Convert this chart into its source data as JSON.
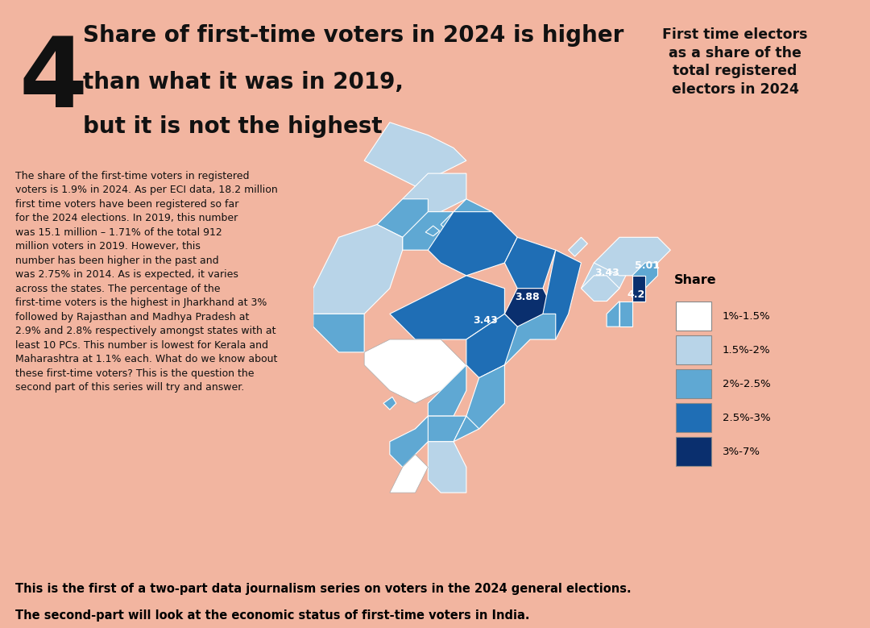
{
  "bg_color_salmon": "#f2b5a0",
  "bg_color_green": "#c9db78",
  "bg_color_footer": "#e0e0e0",
  "number_label": "4",
  "headline_line1": "Share of first-time voters in 2024 is higher",
  "headline_line2": "than what it was in 2019,",
  "headline_line3": "but it is not the highest",
  "body_text": "The share of the first-time voters in registered\nvoters is 1.9% in 2024. As per ECI data, 18.2 million\nfirst time voters have been registered so far\nfor the 2024 elections. In 2019, this number\nwas 15.1 million – 1.71% of the total 912\nmillion voters in 2019. However, this\nnumber has been higher in the past and\nwas 2.75% in 2014. As is expected, it varies\nacross the states. The percentage of the\nfirst-time voters is the highest in Jharkhand at 3%\nfollowed by Rajasthan and Madhya Pradesh at\n2.9% and 2.8% respectively amongst states with at\nleast 10 PCs. This number is lowest for Kerala and\nMaharashtra at 1.1% each. What do we know about\nthese first-time voters? This is the question the\nsecond part of this series will try and answer.",
  "map_title": "First time electors\nas a share of the\ntotal registered\nelectors in 2024",
  "legend_title": "Share",
  "legend_items": [
    {
      "label": "1%-1.5%",
      "color": "#ffffff"
    },
    {
      "label": "1.5%-2%",
      "color": "#b8d4e8"
    },
    {
      "label": "2%-2.5%",
      "color": "#5fa8d3"
    },
    {
      "label": "2.5%-3%",
      "color": "#1f6eb5"
    },
    {
      "label": "3%-7%",
      "color": "#0a2f6e"
    }
  ],
  "state_colors": {
    "Jammu & Kashmir": "#b8d4e8",
    "Ladakh": "#b8d4e8",
    "Himachal Pradesh": "#b8d4e8",
    "Uttarakhand": "#5fa8d3",
    "Punjab": "#5fa8d3",
    "Haryana": "#5fa8d3",
    "Delhi": "#5fa8d3",
    "Uttar Pradesh": "#1f6eb5",
    "Rajasthan": "#1f6eb5",
    "Bihar": "#1f6eb5",
    "Jharkhand": "#0a2f6e",
    "West Bengal": "#1f6eb5",
    "Sikkim": "#b8d4e8",
    "Assam": "#b8d4e8",
    "Arunachal Pradesh": "#b8d4e8",
    "Nagaland": "#5fa8d3",
    "Manipur": "#0a2f6e",
    "Mizoram": "#5fa8d3",
    "Tripura": "#5fa8d3",
    "Meghalaya": "#b8d4e8",
    "Madhya Pradesh": "#1f6eb5",
    "Chhattisgarh": "#1f6eb5",
    "Gujarat": "#5fa8d3",
    "Maharashtra": "#ffffff",
    "Goa": "#5fa8d3",
    "Odisha": "#5fa8d3",
    "Andhra Pradesh": "#5fa8d3",
    "Telangana": "#5fa8d3",
    "Karnataka": "#5fa8d3",
    "Tamil Nadu": "#b8d4e8",
    "Kerala": "#ffffff",
    "Andaman & Nicobar": "#b8d4e8",
    "Lakshadweep": "#b8d4e8",
    "Puducherry": "#b8d4e8",
    "Chandigarh": "#5fa8d3",
    "Daman & Diu": "#5fa8d3",
    "Dadra & Nagar Haveli": "#5fa8d3"
  },
  "annotations": [
    {
      "text": "3.88",
      "lon": 85.5,
      "lat": 24.0
    },
    {
      "text": "3.43",
      "lon": 82.5,
      "lat": 23.0
    },
    {
      "text": "3.43",
      "lon": 91.5,
      "lat": 25.8
    },
    {
      "text": "5.01",
      "lon": 94.5,
      "lat": 25.5
    },
    {
      "text": "4.2",
      "lon": 93.5,
      "lat": 24.0
    }
  ],
  "footer_line1": "This is the first of a two-part data journalism series on voters in the 2024 general elections.",
  "footer_line2": "The second-part will look at the economic status of first-time voters in India."
}
